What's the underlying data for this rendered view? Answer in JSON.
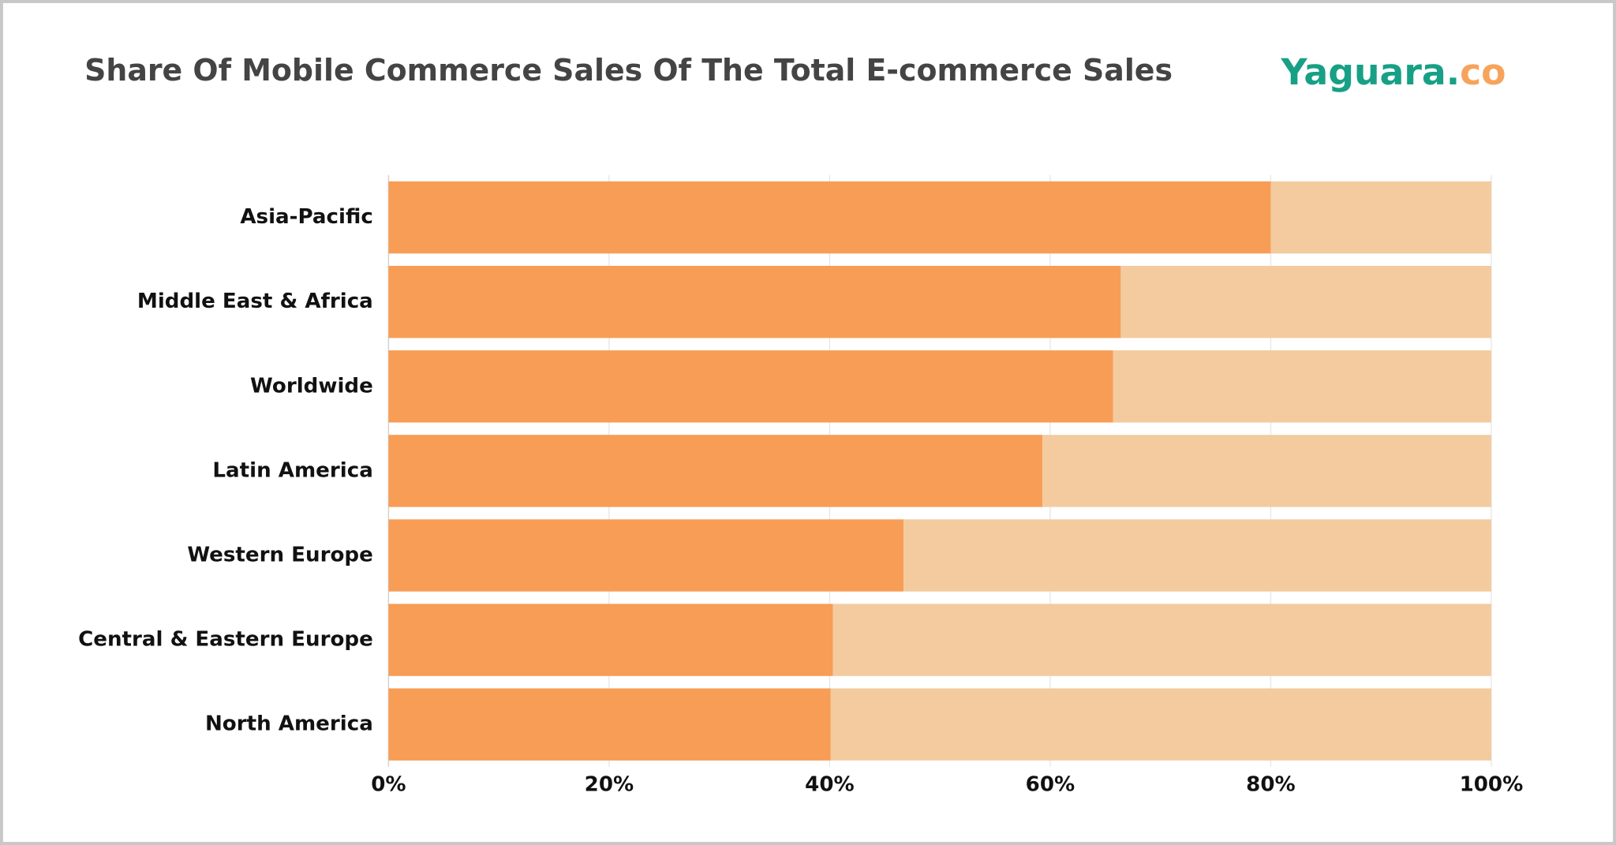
{
  "chart_data": {
    "type": "stacked-bar-horizontal",
    "title": "Share Of Mobile Commerce Sales Of The Total E-commerce Sales",
    "categories": [
      "Asia-Pacific",
      "Middle East & Africa",
      "Worldwide",
      "Latin America",
      "Western Europe",
      "Central & Eastern Europe",
      "North America"
    ],
    "series": [
      {
        "color": "#f89d55",
        "values": [
          80,
          66.4,
          65.7,
          59.3,
          46.7,
          40.3,
          40.1
        ]
      },
      {
        "color": "#f3cb9f",
        "values": [
          20,
          33.6,
          34.3,
          40.7,
          53.3,
          59.7,
          59.9
        ]
      }
    ],
    "xlim": [
      0,
      100
    ],
    "xticks": [
      {
        "value": 0,
        "label": "0%"
      },
      {
        "value": 20,
        "label": "20%"
      },
      {
        "value": 40,
        "label": "40%"
      },
      {
        "value": 60,
        "label": "60%"
      },
      {
        "value": 80,
        "label": "80%"
      },
      {
        "value": 100,
        "label": "100%"
      }
    ],
    "grid": true
  },
  "logo": {
    "name": "Yaguara.",
    "suffix": "co",
    "name_color": "#17a085",
    "suffix_color": "#f7a35c"
  }
}
